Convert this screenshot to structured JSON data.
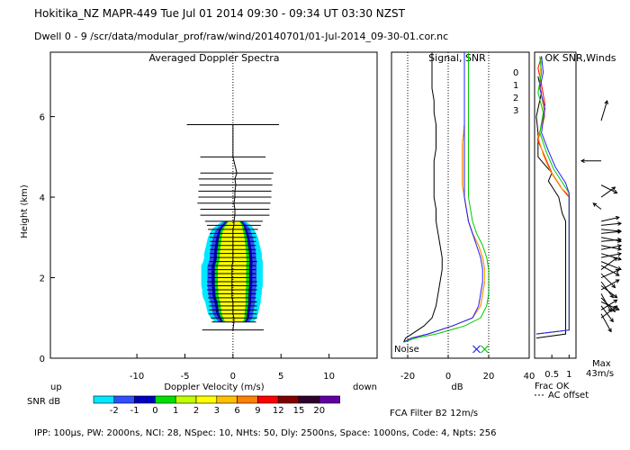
{
  "header": {
    "line1": "Hokitika_NZ   MAPR-449  Tue Jul 01 2014 09:30 - 09:34 UT 03:30 NZST",
    "line2": "Dwell   0  -   9    /scr/data/modular_prof/raw/wind/20140701/01-Jul-2014_09-30-01.cor.nc"
  },
  "footer": {
    "params": "IPP: 100μs,  PW: 2000ns,  NCI:  28,  NSpec: 10, NHts: 50,  Dly: 2500ns,  Space: 1000ns,  Code: 4,  Npts: 256",
    "fca": "FCA Filter B2 12m/s"
  },
  "colors": {
    "snr_scale": [
      "#00e8ff",
      "#3050ff",
      "#0000c0",
      "#00e000",
      "#c0ff00",
      "#ffff00",
      "#ffc000",
      "#ff8000",
      "#ff0000",
      "#800000",
      "#300030",
      "#6000a0"
    ],
    "line0": "#ff0000",
    "line1": "#ffa000",
    "line2": "#00cc00",
    "line3": "#2020ff"
  },
  "chart_data": [
    {
      "type": "heatmap",
      "title": "Averaged Doppler Spectra",
      "xlabel": "Doppler Velocity (m/s)",
      "ylabel": "Height (km)",
      "xlim": [
        -19,
        15
      ],
      "ylim": [
        0,
        7.6
      ],
      "xticks": [
        -10,
        -5,
        0,
        5,
        10
      ],
      "yticks": [
        0,
        2,
        4,
        6
      ],
      "x_left_label": "up",
      "x_right_label": "down",
      "spectra": [
        {
          "h": 0.7,
          "half": 3.2,
          "c": 0.0,
          "w": 0
        },
        {
          "h": 0.9,
          "half": 2.3,
          "c": 0.1,
          "w": 2.0
        },
        {
          "h": 1.0,
          "half": 2.4,
          "c": 0.1,
          "w": 2.4
        },
        {
          "h": 1.1,
          "half": 2.5,
          "c": 0.0,
          "w": 2.6
        },
        {
          "h": 1.2,
          "half": 2.5,
          "c": 0.0,
          "w": 2.7
        },
        {
          "h": 1.3,
          "half": 2.5,
          "c": 0.0,
          "w": 2.8
        },
        {
          "h": 1.4,
          "half": 2.5,
          "c": 0.0,
          "w": 2.9
        },
        {
          "h": 1.5,
          "half": 2.5,
          "c": -0.1,
          "w": 3.0
        },
        {
          "h": 1.6,
          "half": 2.5,
          "c": -0.1,
          "w": 3.1
        },
        {
          "h": 1.7,
          "half": 2.6,
          "c": -0.1,
          "w": 3.1
        },
        {
          "h": 1.8,
          "half": 2.6,
          "c": -0.1,
          "w": 3.2
        },
        {
          "h": 1.9,
          "half": 2.6,
          "c": -0.1,
          "w": 3.2
        },
        {
          "h": 2.0,
          "half": 2.5,
          "c": -0.1,
          "w": 3.2
        },
        {
          "h": 2.1,
          "half": 2.5,
          "c": -0.1,
          "w": 3.2
        },
        {
          "h": 2.2,
          "half": 2.5,
          "c": -0.1,
          "w": 3.2
        },
        {
          "h": 2.3,
          "half": 2.5,
          "c": -0.1,
          "w": 3.2
        },
        {
          "h": 2.4,
          "half": 2.5,
          "c": 0.0,
          "w": 3.1
        },
        {
          "h": 2.5,
          "half": 2.4,
          "c": 0.0,
          "w": 3.0
        },
        {
          "h": 2.6,
          "half": 2.4,
          "c": 0.0,
          "w": 3.0
        },
        {
          "h": 2.7,
          "half": 2.4,
          "c": 0.0,
          "w": 2.9
        },
        {
          "h": 2.8,
          "half": 2.4,
          "c": 0.0,
          "w": 2.8
        },
        {
          "h": 2.9,
          "half": 2.4,
          "c": 0.0,
          "w": 2.7
        },
        {
          "h": 3.0,
          "half": 2.4,
          "c": 0.0,
          "w": 2.6
        },
        {
          "h": 3.1,
          "half": 2.4,
          "c": 0.0,
          "w": 2.4
        },
        {
          "h": 3.2,
          "half": 2.6,
          "c": 0.0,
          "w": 2.2
        },
        {
          "h": 3.3,
          "half": 2.8,
          "c": 0.1,
          "w": 1.8
        },
        {
          "h": 3.4,
          "half": 3.0,
          "c": 0.1,
          "w": 1.2
        },
        {
          "h": 3.55,
          "half": 3.6,
          "c": 0.2,
          "w": 0
        },
        {
          "h": 3.7,
          "half": 3.6,
          "c": 0.2,
          "w": 0
        },
        {
          "h": 3.85,
          "half": 3.8,
          "c": 0.1,
          "w": 0
        },
        {
          "h": 4.0,
          "half": 3.8,
          "c": 0.2,
          "w": 0
        },
        {
          "h": 4.15,
          "half": 3.8,
          "c": 0.2,
          "w": 0
        },
        {
          "h": 4.3,
          "half": 3.8,
          "c": 0.3,
          "w": 0
        },
        {
          "h": 4.45,
          "half": 3.8,
          "c": 0.2,
          "w": 0
        },
        {
          "h": 4.6,
          "half": 3.8,
          "c": 0.4,
          "w": 0
        },
        {
          "h": 5.0,
          "half": 3.4,
          "c": 0.0,
          "w": 0
        },
        {
          "h": 5.8,
          "half": 4.8,
          "c": 0.0,
          "w": 0
        }
      ]
    },
    {
      "type": "line",
      "title": "Signal, SNR",
      "xlabel": "dB",
      "xlim": [
        -28,
        40
      ],
      "ylim": [
        0,
        7.6
      ],
      "xticks": [
        -20,
        0,
        20,
        40
      ],
      "noise_label": "Noise",
      "noise_markers_x": [
        14,
        18
      ],
      "series": [
        {
          "name": "signal",
          "color": "#000000",
          "x": [
            -22,
            -21,
            -18,
            -12,
            -8,
            -6,
            -5,
            -4,
            -3,
            -3,
            -4,
            -5,
            -6,
            -6,
            -7,
            -7,
            -7,
            -7,
            -6,
            -6,
            -6,
            -7,
            -7,
            -8,
            -8,
            -8,
            -8,
            -8,
            -8
          ],
          "y": [
            0.4,
            0.5,
            0.6,
            0.8,
            1.0,
            1.3,
            1.6,
            1.9,
            2.2,
            2.5,
            2.8,
            3.1,
            3.4,
            3.7,
            4.0,
            4.3,
            4.6,
            4.9,
            5.2,
            5.5,
            5.8,
            6.1,
            6.4,
            6.7,
            7.0,
            7.2,
            7.4,
            7.5,
            7.6
          ]
        },
        {
          "name": "0",
          "color": "#ff0000",
          "x": [
            -22,
            -18,
            -10,
            2,
            12,
            16,
            17,
            18,
            18,
            17,
            15,
            12,
            10,
            9,
            8,
            7,
            7,
            7,
            8,
            8,
            8,
            8,
            8,
            8
          ],
          "y": [
            0.4,
            0.5,
            0.6,
            0.8,
            1.0,
            1.3,
            1.6,
            1.9,
            2.2,
            2.5,
            2.8,
            3.1,
            3.4,
            3.7,
            4.0,
            4.3,
            4.8,
            5.3,
            5.8,
            6.3,
            6.8,
            7.2,
            7.4,
            7.6
          ]
        },
        {
          "name": "1",
          "color": "#ffa000",
          "x": [
            -22,
            -18,
            -10,
            2,
            12,
            16,
            17,
            18,
            18,
            17,
            15,
            12,
            10,
            9,
            8,
            7,
            7,
            7,
            8,
            8,
            8,
            8,
            8,
            8
          ],
          "y": [
            0.4,
            0.5,
            0.6,
            0.8,
            1.0,
            1.3,
            1.6,
            1.9,
            2.2,
            2.5,
            2.8,
            3.1,
            3.4,
            3.7,
            4.0,
            4.3,
            4.8,
            5.3,
            5.8,
            6.3,
            6.8,
            7.2,
            7.4,
            7.6
          ]
        },
        {
          "name": "2",
          "color": "#00cc00",
          "x": [
            -22,
            -16,
            -6,
            8,
            16,
            19,
            20,
            20,
            20,
            19,
            17,
            14,
            12,
            11,
            10,
            10,
            10,
            10,
            10,
            10,
            10,
            10,
            10,
            10
          ],
          "y": [
            0.4,
            0.5,
            0.6,
            0.8,
            1.0,
            1.3,
            1.6,
            1.9,
            2.2,
            2.5,
            2.8,
            3.1,
            3.4,
            3.7,
            4.0,
            4.3,
            4.8,
            5.3,
            5.8,
            6.3,
            6.8,
            7.2,
            7.4,
            7.6
          ]
        },
        {
          "name": "3",
          "color": "#2020ff",
          "x": [
            -22,
            -18,
            -10,
            2,
            12,
            15,
            16,
            17,
            17,
            16,
            14,
            12,
            10,
            9,
            8,
            8,
            8,
            8,
            8,
            8,
            8,
            8,
            8,
            8
          ],
          "y": [
            0.4,
            0.5,
            0.6,
            0.8,
            1.0,
            1.3,
            1.6,
            1.9,
            2.2,
            2.5,
            2.8,
            3.1,
            3.4,
            3.7,
            4.0,
            4.3,
            4.8,
            5.3,
            5.8,
            6.3,
            6.8,
            7.2,
            7.4,
            7.6
          ]
        }
      ]
    },
    {
      "type": "line",
      "title": "OK SNR,Winds",
      "xlabel": "Frac OK",
      "xlabel2": "AC offset",
      "xlim": [
        0,
        1.2
      ],
      "ylim": [
        0,
        7.6
      ],
      "xticks": [
        0.5,
        1
      ],
      "xtick_labels": [
        "0.5",
        "1"
      ],
      "legend": [
        "0",
        "1",
        "2",
        "3"
      ],
      "max_label": "Max",
      "max_value": "43m/s",
      "series": [
        {
          "name": "frac_black",
          "color": "#000000",
          "x": [
            0.05,
            0.9,
            0.9,
            0.9,
            0.8,
            0.75,
            0.7,
            0.55,
            0.4,
            0.5,
            0.3,
            0.1,
            0.1,
            0.05,
            0.2,
            0.1
          ],
          "y": [
            0.5,
            0.6,
            2.0,
            3.4,
            3.6,
            3.8,
            4.0,
            4.2,
            4.4,
            4.6,
            4.8,
            5.0,
            5.6,
            6.0,
            6.6,
            7.0
          ]
        },
        {
          "name": "0",
          "color": "#ff0000",
          "x": [
            0.05,
            1.0,
            1.0,
            1.0,
            0.8,
            0.5,
            0.3,
            0.1,
            0.2,
            0.3,
            0.2,
            0.1,
            0.2
          ],
          "y": [
            0.6,
            0.7,
            3.6,
            4.0,
            4.2,
            4.6,
            5.0,
            5.4,
            5.8,
            6.3,
            6.8,
            7.2,
            7.5
          ]
        },
        {
          "name": "1",
          "color": "#ffa000",
          "x": [
            0.05,
            1.0,
            1.0,
            1.0,
            0.75,
            0.45,
            0.25,
            0.1,
            0.3,
            0.2,
            0.15,
            0.2
          ],
          "y": [
            0.6,
            0.7,
            3.6,
            4.05,
            4.25,
            4.65,
            5.05,
            5.5,
            6.0,
            6.5,
            7.0,
            7.4
          ]
        },
        {
          "name": "2",
          "color": "#00cc00",
          "x": [
            0.05,
            1.0,
            1.0,
            1.0,
            0.85,
            0.55,
            0.35,
            0.15,
            0.25,
            0.1,
            0.2,
            0.15
          ],
          "y": [
            0.6,
            0.7,
            3.6,
            4.1,
            4.3,
            4.7,
            5.1,
            5.6,
            6.1,
            6.6,
            7.1,
            7.5
          ]
        },
        {
          "name": "3",
          "color": "#2020ff",
          "x": [
            0.05,
            1.0,
            1.0,
            1.0,
            0.9,
            0.6,
            0.4,
            0.2,
            0.3,
            0.15,
            0.25,
            0.2
          ],
          "y": [
            0.6,
            0.7,
            3.6,
            4.1,
            4.35,
            4.75,
            5.15,
            5.6,
            6.2,
            6.7,
            7.1,
            7.5
          ]
        }
      ],
      "wind_barbs": [
        {
          "h": 4.9,
          "u": -1.0,
          "v": 0.0
        },
        {
          "h": 5.9,
          "u": 0.3,
          "v": 1.0
        },
        {
          "h": 4.3,
          "u": 0.8,
          "v": -0.4
        },
        {
          "h": 4.0,
          "u": 0.7,
          "v": 0.5
        },
        {
          "h": 3.7,
          "u": -0.4,
          "v": 0.3
        },
        {
          "h": 3.4,
          "u": 0.9,
          "v": 0.2
        },
        {
          "h": 3.3,
          "u": 1.0,
          "v": 0.1
        },
        {
          "h": 3.2,
          "u": 1.0,
          "v": -0.1
        },
        {
          "h": 3.1,
          "u": 1.0,
          "v": 0.1
        },
        {
          "h": 3.0,
          "u": 1.0,
          "v": -0.2
        },
        {
          "h": 2.9,
          "u": 1.0,
          "v": 0.1
        },
        {
          "h": 2.8,
          "u": 1.0,
          "v": -0.2
        },
        {
          "h": 2.7,
          "u": 1.0,
          "v": 0.2
        },
        {
          "h": 2.6,
          "u": 1.0,
          "v": -0.3
        },
        {
          "h": 2.5,
          "u": 1.0,
          "v": 0.2
        },
        {
          "h": 2.4,
          "u": 1.0,
          "v": -0.4
        },
        {
          "h": 2.3,
          "u": 0.9,
          "v": -0.5
        },
        {
          "h": 2.2,
          "u": 0.8,
          "v": 0.6
        },
        {
          "h": 2.1,
          "u": 0.7,
          "v": -0.7
        },
        {
          "h": 2.0,
          "u": 0.9,
          "v": 0.4
        },
        {
          "h": 1.9,
          "u": 0.6,
          "v": -0.8
        },
        {
          "h": 1.8,
          "u": 0.8,
          "v": -0.6
        },
        {
          "h": 1.7,
          "u": 0.9,
          "v": 0.5
        },
        {
          "h": 1.6,
          "u": 0.5,
          "v": -0.9
        },
        {
          "h": 1.5,
          "u": 0.7,
          "v": -0.7
        },
        {
          "h": 1.4,
          "u": 0.9,
          "v": -0.4
        },
        {
          "h": 1.3,
          "u": 0.6,
          "v": -0.8
        },
        {
          "h": 1.2,
          "u": 0.8,
          "v": 0.5
        },
        {
          "h": 1.1,
          "u": 0.5,
          "v": -0.9
        },
        {
          "h": 1.0,
          "u": 0.8,
          "v": 0.6
        }
      ]
    }
  ],
  "colorbar": {
    "label": "SNR dB",
    "ticks": [
      "-2",
      "-1",
      "0",
      "1",
      "2",
      "3",
      "6",
      "9",
      "12",
      "15",
      "20"
    ]
  }
}
